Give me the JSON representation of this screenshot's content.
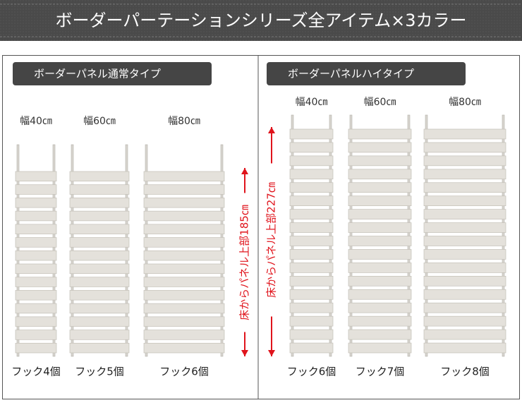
{
  "header": {
    "title": "ボーダーパーテーションシリーズ全アイテム×3カラー"
  },
  "sections": [
    {
      "label": "ボーダーパネル通常タイプ",
      "height_note": "床からパネル上部185㎝",
      "items": [
        {
          "width": "幅40㎝",
          "hooks": "フック4個"
        },
        {
          "width": "幅60㎝",
          "hooks": "フック5個"
        },
        {
          "width": "幅80㎝",
          "hooks": "フック6個"
        }
      ]
    },
    {
      "label": "ボーダーパネルハイタイプ",
      "height_note": "床からパネル上部227㎝",
      "items": [
        {
          "width": "幅40㎝",
          "hooks": "フック6個"
        },
        {
          "width": "幅60㎝",
          "hooks": "フック7個"
        },
        {
          "width": "幅80㎝",
          "hooks": "フック8個"
        }
      ]
    }
  ]
}
